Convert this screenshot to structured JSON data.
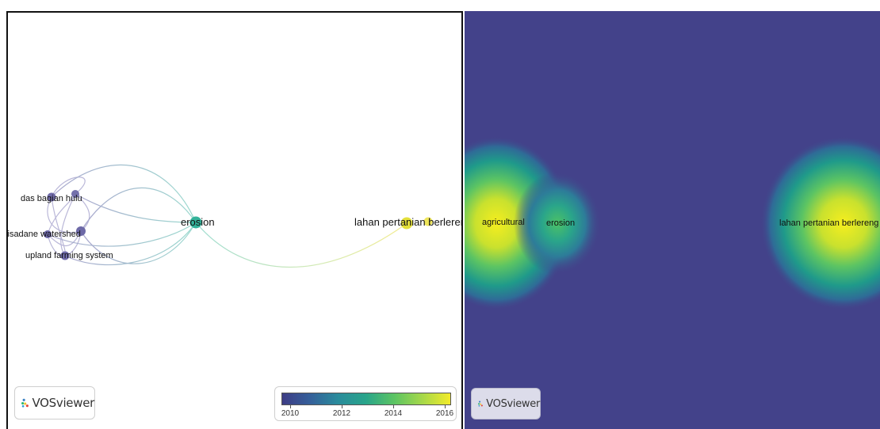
{
  "network_view": {
    "nodes": [
      {
        "label": "das bagian hulu",
        "color": "#6f6aa8"
      },
      {
        "label": "cisadane watershed",
        "color": "#6b66a6"
      },
      {
        "label": "upland farming system",
        "color": "#6e69a8"
      },
      {
        "label": "erosion",
        "color": "#33b39a"
      },
      {
        "label": "lahan pertanian berlereng",
        "color": "#e4e03a"
      }
    ],
    "logo": {
      "text": "VOSviewer"
    },
    "legend": {
      "ticks": [
        "2010",
        "2012",
        "2014",
        "2016"
      ],
      "colors": [
        "#3d3c85",
        "#2a8c9c",
        "#5cc463",
        "#f3eb2a"
      ]
    }
  },
  "density_view": {
    "labels": [
      {
        "text": "agricultural"
      },
      {
        "text": "erosion"
      },
      {
        "text": "lahan pertanian berlereng"
      }
    ],
    "logo": {
      "text": "VOSviewer"
    },
    "background": "#43428a"
  }
}
